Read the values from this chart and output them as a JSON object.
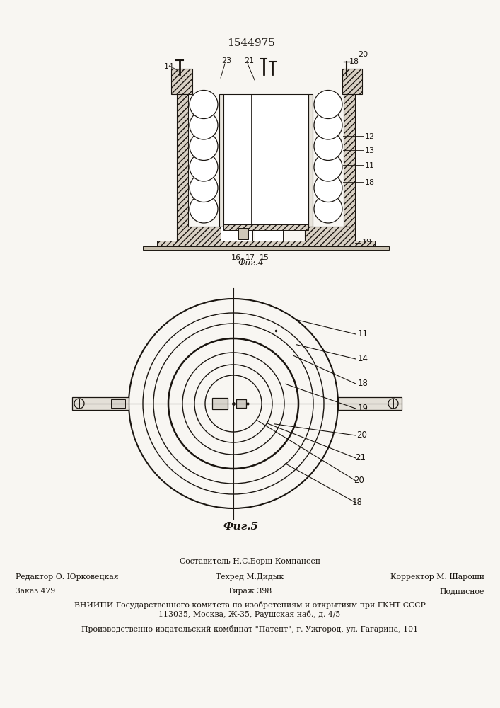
{
  "patent_number": "1544975",
  "bg_color": "#f8f6f2",
  "line_color": "#1a1510",
  "footer": {
    "sestavitel": "Составитель Н.С.Борщ-Компанеец",
    "redaktor": "Редактор О. Юрковецкая",
    "tehred": "Техред М.Дидык",
    "korrektor": "Корректор М. Шароши",
    "zakaz": "Заказ 479",
    "tirazh": "Тираж 398",
    "podpisnoe": "Подписное",
    "vnipi": "ВНИИПИ Государственного комитета по изобретениям и открытиям при ГКНТ СССР",
    "address": "113035, Москва, Ж-35, Раушская наб., д. 4/5",
    "proizv": "Производственно-издательский комбинат \"Патент\", г. Ужгород, ул. Гагарина, 101"
  }
}
